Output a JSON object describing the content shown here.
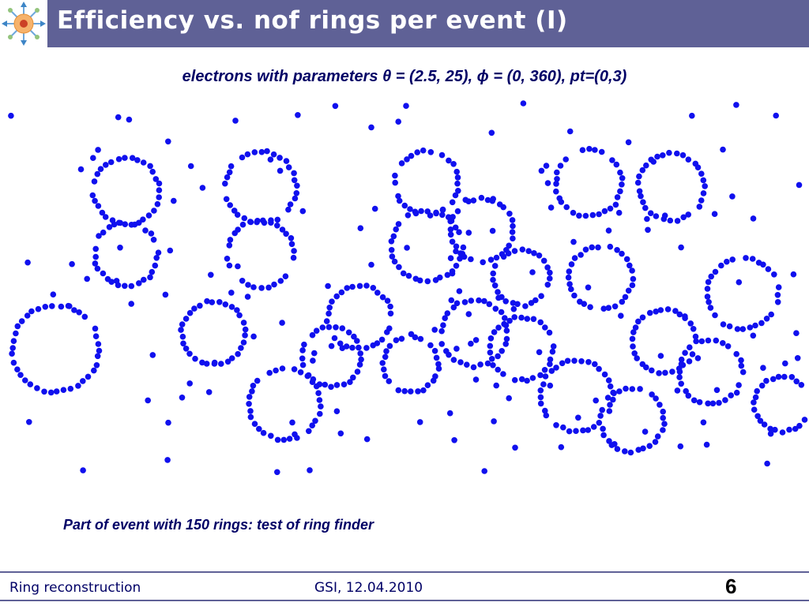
{
  "slide": {
    "title": "Efficiency vs. nof rings per event (I)",
    "subtitle": "electrons with parameters θ = (2.5, 25), ϕ = (0, 360), pt=(0,3)",
    "caption": "Part of event with 150 rings: test of ring finder",
    "logo_icon": "molecule-logo-icon"
  },
  "footer": {
    "left": "Ring reconstruction",
    "center": "GSI, 12.04.2010",
    "page": "6"
  },
  "colors": {
    "title_bar": "#5f6196",
    "hit_color": "#1010ee",
    "text_color": "#000066"
  }
}
